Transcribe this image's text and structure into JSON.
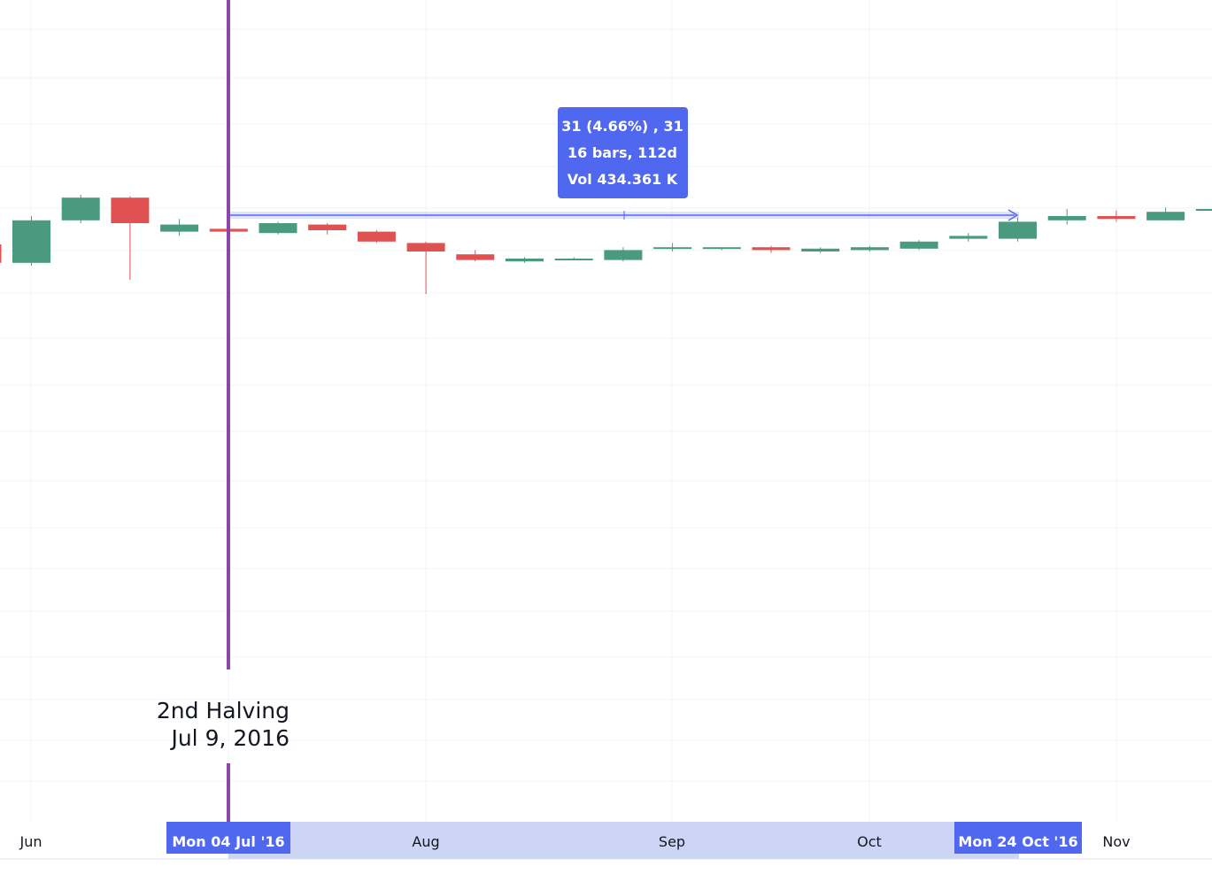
{
  "chart_data": {
    "type": "candlestick",
    "timeframe": "weekly",
    "x_ticks": [
      "Jun",
      "Aug",
      "Sep",
      "Oct",
      "Nov"
    ],
    "colors": {
      "up": "#4a9a7f",
      "down": "#e05252",
      "marker": "#8e44ad",
      "measure": "#5068f0"
    },
    "candles": [
      {
        "o": 660,
        "h": 668,
        "l": 640,
        "c": 647
      },
      {
        "o": 647,
        "h": 680,
        "l": 645,
        "c": 677
      },
      {
        "o": 677,
        "h": 695,
        "l": 675,
        "c": 693
      },
      {
        "o": 693,
        "h": 694,
        "l": 635,
        "c": 675
      },
      {
        "o": 669,
        "h": 678,
        "l": 666,
        "c": 674
      },
      {
        "o": 671,
        "h": 672,
        "l": 669,
        "c": 669
      },
      {
        "o": 668,
        "h": 676,
        "l": 667,
        "c": 675
      },
      {
        "o": 674,
        "h": 675,
        "l": 667,
        "c": 670
      },
      {
        "o": 669,
        "h": 670,
        "l": 661,
        "c": 662
      },
      {
        "o": 661,
        "h": 662,
        "l": 625,
        "c": 655
      },
      {
        "o": 653,
        "h": 656,
        "l": 648,
        "c": 649
      },
      {
        "o": 648,
        "h": 651,
        "l": 647,
        "c": 650
      },
      {
        "o": 650,
        "h": 651,
        "l": 649,
        "c": 650
      },
      {
        "o": 649,
        "h": 658,
        "l": 648,
        "c": 656
      },
      {
        "o": 657,
        "h": 661,
        "l": 655,
        "c": 658
      },
      {
        "o": 657,
        "h": 658,
        "l": 656,
        "c": 658
      },
      {
        "o": 658,
        "h": 659,
        "l": 654,
        "c": 656
      },
      {
        "o": 655,
        "h": 658,
        "l": 654,
        "c": 657
      },
      {
        "o": 656,
        "h": 659,
        "l": 655,
        "c": 658
      },
      {
        "o": 657,
        "h": 663,
        "l": 656,
        "c": 662
      },
      {
        "o": 664,
        "h": 668,
        "l": 662,
        "c": 666
      },
      {
        "o": 664,
        "h": 679,
        "l": 662,
        "c": 676
      },
      {
        "o": 677,
        "h": 685,
        "l": 674,
        "c": 680
      },
      {
        "o": 680,
        "h": 684,
        "l": 676,
        "c": 678
      },
      {
        "o": 677,
        "h": 686,
        "l": 677,
        "c": 683
      },
      {
        "o": 684,
        "h": 685,
        "l": 684,
        "c": 685
      }
    ],
    "marker": {
      "date": "2016-07-04",
      "label_line1": "2nd Halving",
      "label_line2": "Jul 9, 2016"
    },
    "measure": {
      "start_label": "Mon 04 Jul '16",
      "end_label": "Mon 24 Oct '16",
      "line1": "31 (4.66%) , 31",
      "line2": "16 bars, 112d",
      "line3": "Vol 434.361 K"
    }
  }
}
